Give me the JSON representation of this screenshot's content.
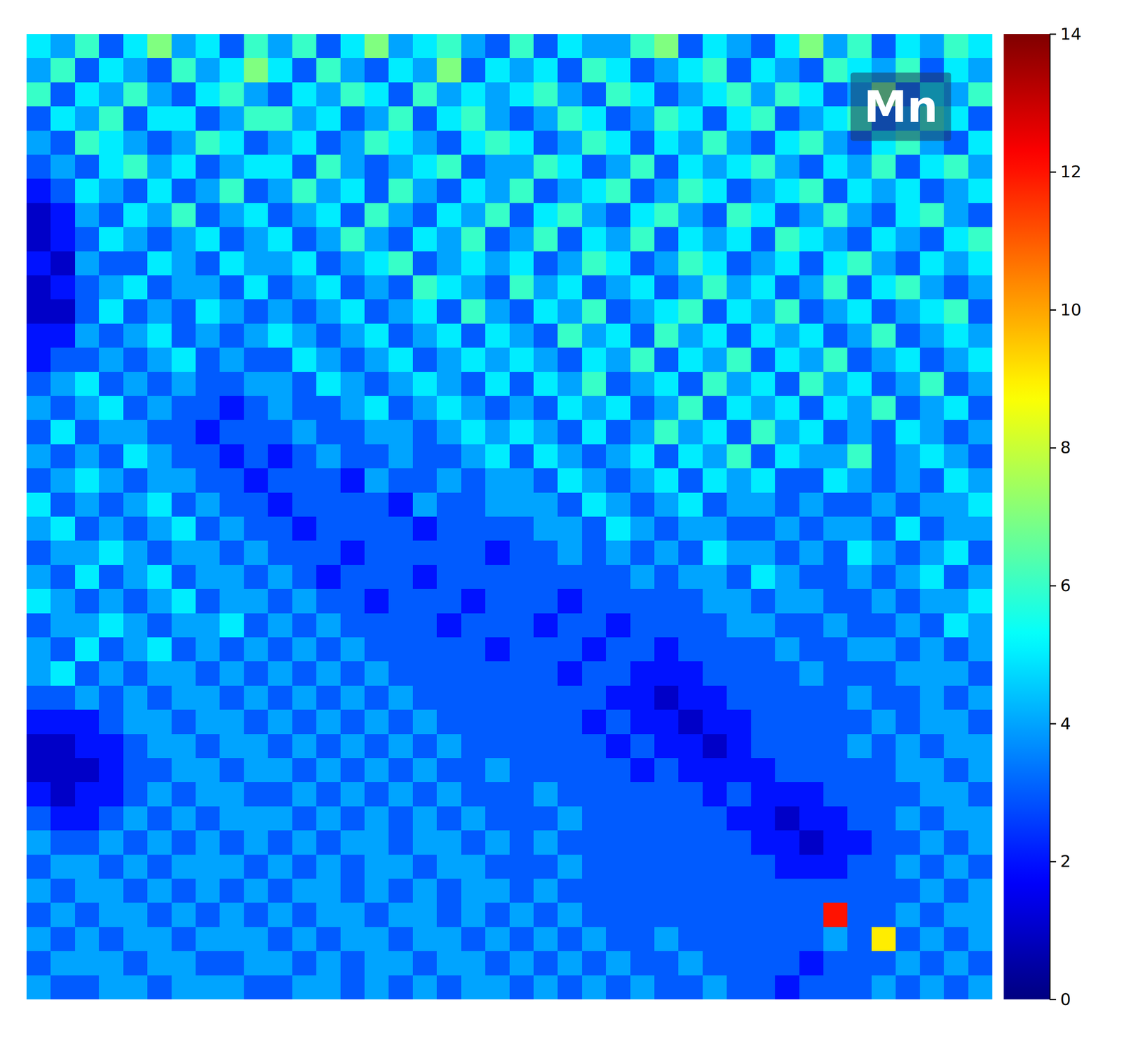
{
  "chart_data": {
    "type": "heatmap",
    "annotation": "Mn",
    "tick_labels": false,
    "colorbar_range": [
      0,
      14
    ],
    "colorbar_ticks": [
      0,
      2,
      4,
      6,
      8,
      10,
      12,
      14
    ],
    "values": [
      [
        5,
        4,
        6,
        3,
        5,
        7,
        4,
        5,
        3,
        6,
        4,
        6,
        3,
        5,
        7,
        4,
        5,
        6,
        4,
        3,
        6,
        3,
        5,
        4,
        4,
        6,
        7,
        3,
        5,
        4,
        3,
        5,
        7,
        4,
        6,
        3,
        5,
        4,
        6,
        5
      ],
      [
        4,
        6,
        3,
        5,
        4,
        3,
        6,
        4,
        5,
        7,
        5,
        3,
        6,
        4,
        3,
        5,
        4,
        7,
        3,
        5,
        4,
        5,
        3,
        6,
        5,
        3,
        4,
        5,
        6,
        3,
        5,
        4,
        3,
        6,
        5,
        4,
        6,
        3,
        5,
        4
      ],
      [
        6,
        3,
        5,
        4,
        6,
        4,
        3,
        5,
        6,
        4,
        3,
        5,
        4,
        6,
        5,
        3,
        6,
        4,
        5,
        4,
        5,
        6,
        4,
        3,
        6,
        5,
        3,
        4,
        5,
        6,
        4,
        6,
        5,
        3,
        4,
        7,
        3,
        5,
        4,
        6
      ],
      [
        3,
        5,
        4,
        6,
        3,
        5,
        5,
        3,
        4,
        6,
        6,
        4,
        5,
        3,
        4,
        6,
        3,
        5,
        6,
        4,
        3,
        4,
        6,
        5,
        3,
        4,
        6,
        5,
        3,
        5,
        6,
        3,
        4,
        5,
        6,
        3,
        4,
        6,
        5,
        3
      ],
      [
        4,
        3,
        6,
        5,
        4,
        3,
        4,
        6,
        5,
        3,
        4,
        5,
        3,
        4,
        6,
        5,
        4,
        3,
        5,
        6,
        5,
        3,
        4,
        6,
        5,
        3,
        5,
        4,
        6,
        4,
        3,
        5,
        6,
        4,
        3,
        5,
        6,
        4,
        3,
        5
      ],
      [
        3,
        4,
        3,
        5,
        6,
        4,
        5,
        3,
        4,
        5,
        5,
        3,
        6,
        4,
        3,
        4,
        5,
        6,
        3,
        4,
        4,
        6,
        5,
        3,
        4,
        6,
        3,
        5,
        4,
        5,
        6,
        4,
        3,
        5,
        4,
        6,
        3,
        5,
        6,
        4
      ],
      [
        2,
        3,
        5,
        4,
        3,
        5,
        3,
        4,
        6,
        3,
        4,
        6,
        4,
        5,
        3,
        6,
        4,
        3,
        5,
        4,
        6,
        3,
        4,
        5,
        6,
        3,
        4,
        6,
        5,
        3,
        4,
        5,
        6,
        3,
        5,
        4,
        5,
        3,
        4,
        5
      ],
      [
        1,
        2,
        4,
        3,
        5,
        4,
        6,
        3,
        4,
        5,
        3,
        4,
        5,
        3,
        6,
        4,
        3,
        5,
        4,
        6,
        3,
        5,
        6,
        4,
        3,
        5,
        6,
        4,
        3,
        6,
        5,
        3,
        4,
        6,
        4,
        3,
        5,
        6,
        4,
        3
      ],
      [
        1,
        2,
        3,
        5,
        4,
        3,
        4,
        5,
        3,
        4,
        5,
        3,
        4,
        6,
        4,
        3,
        5,
        4,
        6,
        3,
        4,
        6,
        3,
        5,
        4,
        6,
        3,
        5,
        4,
        5,
        3,
        6,
        5,
        4,
        3,
        5,
        4,
        3,
        5,
        6
      ],
      [
        2,
        1,
        4,
        3,
        3,
        5,
        4,
        3,
        5,
        4,
        4,
        5,
        3,
        4,
        5,
        6,
        3,
        4,
        5,
        4,
        5,
        3,
        4,
        6,
        5,
        3,
        4,
        6,
        5,
        3,
        4,
        5,
        3,
        5,
        6,
        4,
        3,
        5,
        4,
        5
      ],
      [
        1,
        2,
        3,
        4,
        5,
        3,
        4,
        4,
        3,
        5,
        3,
        4,
        5,
        3,
        4,
        3,
        6,
        5,
        4,
        3,
        6,
        4,
        5,
        3,
        4,
        5,
        3,
        4,
        6,
        4,
        5,
        3,
        4,
        6,
        3,
        5,
        6,
        4,
        3,
        4
      ],
      [
        1,
        1,
        3,
        5,
        3,
        4,
        3,
        5,
        4,
        3,
        4,
        3,
        4,
        5,
        3,
        4,
        5,
        3,
        6,
        4,
        3,
        5,
        4,
        6,
        3,
        4,
        5,
        6,
        3,
        5,
        4,
        6,
        3,
        4,
        5,
        3,
        4,
        5,
        6,
        3
      ],
      [
        2,
        2,
        4,
        3,
        4,
        5,
        3,
        4,
        3,
        4,
        5,
        4,
        3,
        4,
        5,
        3,
        4,
        5,
        3,
        5,
        4,
        3,
        6,
        4,
        5,
        3,
        6,
        4,
        5,
        3,
        5,
        4,
        5,
        3,
        4,
        6,
        3,
        4,
        5,
        4
      ],
      [
        2,
        3,
        3,
        4,
        3,
        4,
        5,
        3,
        4,
        3,
        3,
        5,
        4,
        3,
        4,
        5,
        3,
        4,
        5,
        4,
        5,
        4,
        3,
        5,
        4,
        6,
        3,
        5,
        4,
        6,
        3,
        5,
        4,
        6,
        3,
        4,
        5,
        3,
        4,
        5
      ],
      [
        3,
        4,
        5,
        3,
        4,
        3,
        4,
        3,
        3,
        4,
        4,
        3,
        5,
        4,
        3,
        4,
        5,
        4,
        3,
        5,
        3,
        5,
        4,
        6,
        3,
        4,
        5,
        3,
        6,
        4,
        5,
        3,
        6,
        4,
        5,
        3,
        4,
        6,
        3,
        4
      ],
      [
        4,
        3,
        4,
        5,
        3,
        4,
        3,
        3,
        2,
        3,
        4,
        3,
        3,
        4,
        5,
        3,
        4,
        5,
        4,
        3,
        4,
        3,
        5,
        4,
        5,
        3,
        4,
        6,
        3,
        5,
        4,
        5,
        3,
        5,
        4,
        6,
        3,
        4,
        5,
        3
      ],
      [
        3,
        5,
        3,
        4,
        4,
        3,
        3,
        2,
        3,
        3,
        3,
        4,
        3,
        3,
        4,
        4,
        3,
        4,
        5,
        4,
        5,
        4,
        3,
        5,
        3,
        4,
        6,
        4,
        5,
        3,
        6,
        4,
        5,
        3,
        4,
        3,
        5,
        4,
        3,
        4
      ],
      [
        4,
        3,
        4,
        3,
        5,
        4,
        3,
        3,
        2,
        3,
        2,
        3,
        4,
        3,
        3,
        4,
        3,
        3,
        4,
        5,
        3,
        5,
        4,
        3,
        4,
        5,
        3,
        5,
        4,
        6,
        3,
        5,
        4,
        4,
        6,
        3,
        4,
        5,
        4,
        3
      ],
      [
        3,
        4,
        5,
        4,
        3,
        4,
        4,
        3,
        3,
        2,
        3,
        3,
        3,
        2,
        4,
        3,
        3,
        4,
        3,
        4,
        4,
        3,
        5,
        4,
        3,
        4,
        5,
        3,
        5,
        4,
        5,
        3,
        3,
        5,
        4,
        3,
        4,
        3,
        5,
        4
      ],
      [
        5,
        3,
        4,
        3,
        4,
        5,
        3,
        4,
        3,
        3,
        2,
        3,
        3,
        3,
        3,
        2,
        4,
        3,
        3,
        4,
        4,
        4,
        3,
        5,
        4,
        3,
        4,
        5,
        3,
        4,
        4,
        3,
        4,
        3,
        3,
        4,
        3,
        4,
        4,
        5
      ],
      [
        4,
        5,
        3,
        4,
        3,
        4,
        5,
        3,
        4,
        3,
        3,
        2,
        3,
        3,
        3,
        3,
        2,
        3,
        3,
        3,
        3,
        4,
        4,
        3,
        5,
        4,
        3,
        4,
        4,
        3,
        3,
        4,
        3,
        4,
        4,
        3,
        5,
        3,
        4,
        4
      ],
      [
        3,
        4,
        4,
        5,
        4,
        3,
        4,
        4,
        3,
        4,
        3,
        3,
        3,
        2,
        3,
        3,
        3,
        3,
        3,
        2,
        3,
        3,
        4,
        3,
        4,
        3,
        4,
        3,
        5,
        4,
        4,
        3,
        4,
        3,
        5,
        4,
        3,
        4,
        5,
        3
      ],
      [
        4,
        3,
        5,
        3,
        4,
        5,
        3,
        4,
        4,
        3,
        4,
        3,
        2,
        3,
        3,
        3,
        2,
        3,
        3,
        3,
        3,
        3,
        3,
        3,
        3,
        4,
        3,
        4,
        4,
        3,
        5,
        4,
        3,
        3,
        4,
        3,
        4,
        5,
        3,
        4
      ],
      [
        5,
        4,
        3,
        4,
        3,
        4,
        5,
        3,
        4,
        4,
        3,
        4,
        3,
        3,
        2,
        3,
        3,
        3,
        2,
        3,
        3,
        3,
        2,
        3,
        3,
        3,
        3,
        3,
        4,
        4,
        3,
        4,
        4,
        3,
        3,
        4,
        3,
        4,
        4,
        5
      ],
      [
        3,
        4,
        4,
        5,
        4,
        3,
        4,
        4,
        5,
        3,
        4,
        3,
        4,
        3,
        3,
        3,
        3,
        2,
        3,
        3,
        3,
        2,
        3,
        3,
        2,
        3,
        3,
        3,
        3,
        4,
        4,
        3,
        3,
        4,
        3,
        3,
        4,
        3,
        5,
        4
      ],
      [
        4,
        3,
        5,
        3,
        4,
        5,
        3,
        4,
        3,
        4,
        3,
        4,
        3,
        4,
        3,
        3,
        3,
        3,
        3,
        2,
        3,
        3,
        3,
        2,
        3,
        3,
        2,
        3,
        3,
        3,
        3,
        4,
        3,
        3,
        4,
        4,
        3,
        4,
        3,
        4
      ],
      [
        4,
        5,
        3,
        4,
        3,
        4,
        4,
        3,
        4,
        3,
        4,
        3,
        4,
        3,
        4,
        3,
        3,
        3,
        3,
        3,
        3,
        3,
        2,
        3,
        3,
        2,
        2,
        2,
        3,
        3,
        3,
        3,
        4,
        3,
        3,
        3,
        4,
        4,
        4,
        3
      ],
      [
        3,
        3,
        4,
        3,
        4,
        3,
        4,
        4,
        3,
        4,
        3,
        4,
        3,
        4,
        3,
        4,
        3,
        3,
        3,
        3,
        3,
        3,
        3,
        3,
        2,
        2,
        1,
        2,
        2,
        3,
        3,
        3,
        3,
        3,
        4,
        3,
        3,
        4,
        3,
        4
      ],
      [
        2,
        2,
        2,
        3,
        4,
        4,
        3,
        4,
        4,
        3,
        4,
        3,
        4,
        3,
        4,
        3,
        4,
        3,
        3,
        3,
        3,
        3,
        3,
        2,
        3,
        2,
        2,
        1,
        2,
        2,
        3,
        3,
        3,
        3,
        3,
        4,
        3,
        4,
        4,
        3
      ],
      [
        1,
        1,
        2,
        2,
        3,
        4,
        4,
        3,
        4,
        4,
        3,
        4,
        3,
        4,
        3,
        4,
        3,
        4,
        3,
        3,
        3,
        3,
        3,
        3,
        2,
        3,
        2,
        2,
        1,
        2,
        3,
        3,
        3,
        3,
        4,
        3,
        4,
        3,
        4,
        4
      ],
      [
        1,
        1,
        1,
        2,
        3,
        3,
        4,
        4,
        3,
        4,
        4,
        3,
        4,
        3,
        4,
        3,
        4,
        3,
        3,
        4,
        3,
        3,
        3,
        3,
        3,
        2,
        3,
        2,
        2,
        2,
        2,
        3,
        3,
        3,
        3,
        3,
        4,
        4,
        3,
        4
      ],
      [
        2,
        1,
        2,
        2,
        3,
        4,
        3,
        4,
        4,
        3,
        3,
        4,
        3,
        4,
        3,
        4,
        3,
        4,
        3,
        3,
        3,
        4,
        3,
        3,
        3,
        3,
        3,
        3,
        2,
        3,
        2,
        2,
        2,
        3,
        3,
        3,
        3,
        4,
        4,
        3
      ],
      [
        3,
        2,
        2,
        3,
        4,
        3,
        4,
        3,
        4,
        4,
        4,
        3,
        4,
        3,
        4,
        3,
        4,
        3,
        4,
        3,
        3,
        3,
        4,
        3,
        3,
        3,
        3,
        3,
        3,
        2,
        2,
        1,
        2,
        2,
        3,
        3,
        4,
        3,
        4,
        4
      ],
      [
        4,
        3,
        3,
        4,
        3,
        4,
        3,
        4,
        3,
        4,
        3,
        4,
        3,
        4,
        4,
        3,
        4,
        4,
        3,
        4,
        3,
        4,
        3,
        3,
        3,
        3,
        3,
        3,
        3,
        3,
        2,
        2,
        1,
        2,
        2,
        3,
        3,
        4,
        3,
        4
      ],
      [
        3,
        4,
        4,
        3,
        4,
        3,
        4,
        4,
        4,
        3,
        4,
        3,
        4,
        3,
        4,
        4,
        3,
        4,
        4,
        3,
        3,
        3,
        4,
        3,
        3,
        3,
        3,
        3,
        3,
        3,
        3,
        2,
        2,
        2,
        3,
        3,
        4,
        3,
        4,
        3
      ],
      [
        4,
        3,
        4,
        4,
        3,
        4,
        3,
        4,
        3,
        4,
        3,
        4,
        4,
        3,
        4,
        3,
        4,
        3,
        4,
        4,
        3,
        4,
        3,
        3,
        3,
        3,
        3,
        3,
        3,
        3,
        3,
        3,
        3,
        3,
        3,
        3,
        3,
        4,
        3,
        4
      ],
      [
        3,
        4,
        3,
        4,
        4,
        3,
        4,
        3,
        4,
        3,
        4,
        3,
        4,
        4,
        3,
        4,
        4,
        3,
        4,
        3,
        4,
        3,
        4,
        3,
        3,
        3,
        3,
        3,
        3,
        3,
        3,
        3,
        3,
        12,
        3,
        3,
        4,
        3,
        4,
        4
      ],
      [
        4,
        3,
        4,
        3,
        4,
        4,
        3,
        4,
        4,
        4,
        3,
        4,
        3,
        4,
        4,
        3,
        4,
        4,
        3,
        4,
        3,
        4,
        3,
        4,
        3,
        3,
        4,
        3,
        3,
        3,
        3,
        3,
        3,
        4,
        3,
        9,
        3,
        4,
        3,
        4
      ],
      [
        3,
        4,
        4,
        4,
        3,
        4,
        4,
        3,
        3,
        4,
        4,
        3,
        4,
        3,
        4,
        4,
        3,
        4,
        4,
        3,
        4,
        3,
        4,
        3,
        4,
        3,
        3,
        4,
        3,
        3,
        3,
        3,
        2,
        3,
        3,
        3,
        4,
        3,
        4,
        3
      ],
      [
        4,
        3,
        3,
        4,
        4,
        3,
        4,
        4,
        4,
        3,
        3,
        4,
        4,
        3,
        4,
        3,
        4,
        3,
        4,
        4,
        3,
        4,
        3,
        4,
        3,
        4,
        3,
        3,
        4,
        3,
        3,
        2,
        3,
        3,
        3,
        4,
        3,
        4,
        3,
        4
      ]
    ]
  }
}
